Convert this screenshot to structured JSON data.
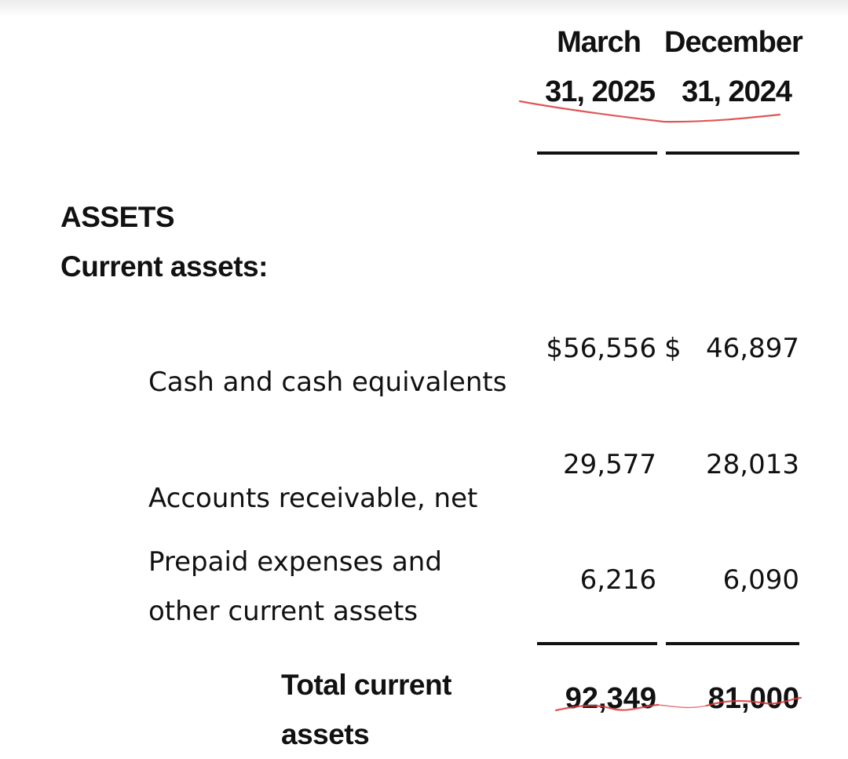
{
  "header": {
    "col1_line1": "March",
    "col1_line2": "31, 2025",
    "col2_line1": "December",
    "col2_line2": "31, 2024"
  },
  "sections": {
    "assets": "ASSETS",
    "current_assets": "Current assets:"
  },
  "rows": [
    {
      "label": "Cash and cash equivalents",
      "col1_value": "$56,556",
      "col2_currency": "$",
      "col2_value": "46,897"
    },
    {
      "label": "Accounts receivable, net",
      "col1_value": "29,577",
      "col2_value": "28,013"
    },
    {
      "label_line1": "Prepaid expenses and",
      "label_line2": "other current assets",
      "col1_value": "6,216",
      "col2_value": "6,090"
    }
  ],
  "total": {
    "label_line1": "Total current",
    "label_line2": "assets",
    "col1_value": "92,349",
    "col2_value": "81,000"
  },
  "annotation_color": "#d9383a"
}
